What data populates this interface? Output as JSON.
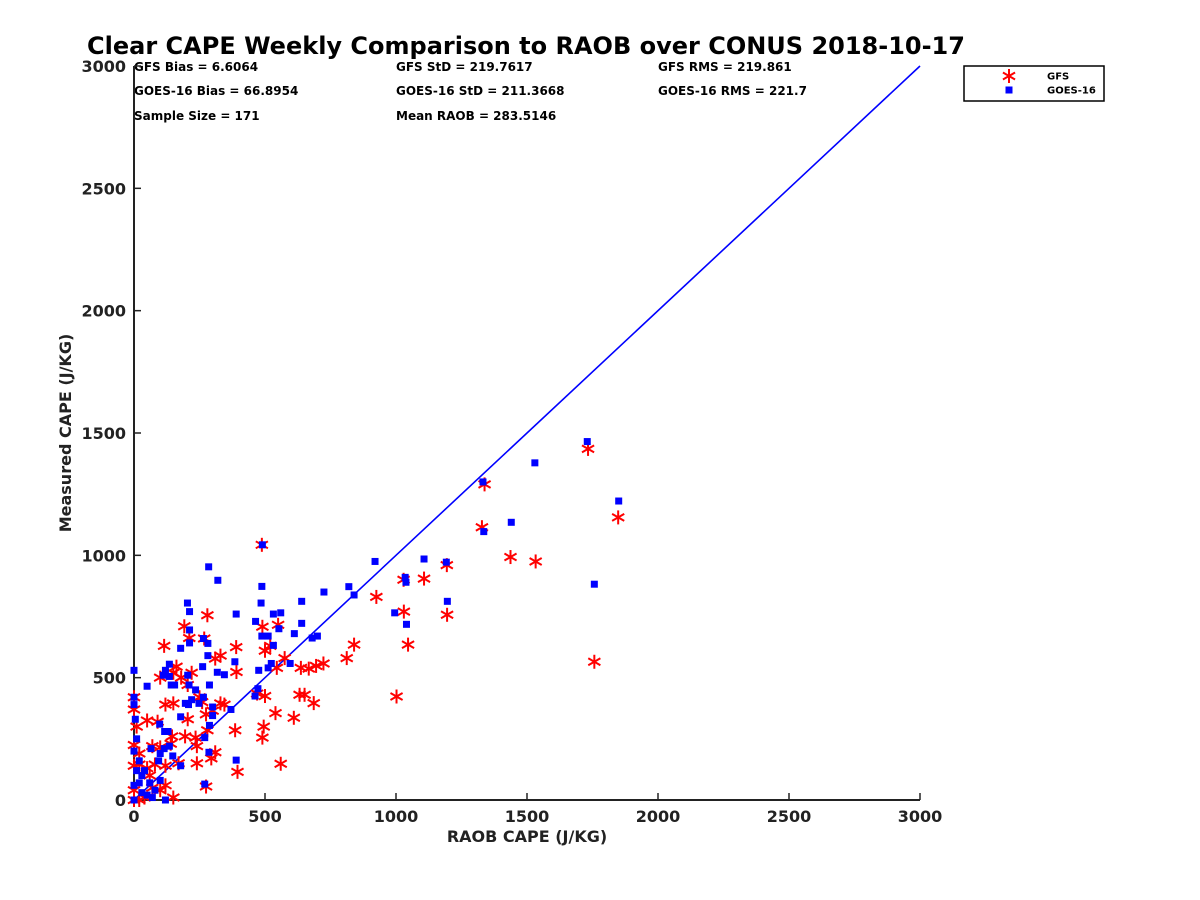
{
  "chart_data": {
    "type": "scatter",
    "title": "Clear CAPE Weekly Comparison to RAOB over CONUS 2018-10-17",
    "xlabel": "RAOB CAPE (J/KG)",
    "ylabel": "Measured CAPE (J/KG)",
    "xlim": [
      0,
      3000
    ],
    "ylim": [
      0,
      3000
    ],
    "xticks": [
      "0",
      "500",
      "1000",
      "1500",
      "2000",
      "2500",
      "3000"
    ],
    "yticks": [
      "0",
      "500",
      "1000",
      "1500",
      "2000",
      "2500",
      "3000"
    ],
    "grid": false,
    "legend_position": "top-right",
    "stats": [
      [
        "GFS Bias = 6.6064",
        "GFS StD = 219.7617",
        "GFS RMS = 219.861"
      ],
      [
        "GOES-16 Bias = 66.8954",
        "GOES-16 StD = 211.3668",
        "GOES-16 RMS = 221.7"
      ],
      [
        "Sample Size = 171",
        "Mean RAOB = 283.5146",
        ""
      ]
    ],
    "reference_line": {
      "x": [
        0,
        3000
      ],
      "y": [
        0,
        3000
      ],
      "color": "#0000ff"
    },
    "series": [
      {
        "name": "GFS",
        "marker": "asterisk",
        "color": "#ff0000",
        "points": [
          [
            488,
            1043
          ],
          [
            1733,
            1435
          ],
          [
            1848,
            1155
          ],
          [
            1338,
            1290
          ],
          [
            1328,
            1115
          ],
          [
            1437,
            993
          ],
          [
            1533,
            975
          ],
          [
            1757,
            565
          ],
          [
            1194,
            960
          ],
          [
            1107,
            905
          ],
          [
            1029,
            900
          ],
          [
            925,
            830
          ],
          [
            1030,
            770
          ],
          [
            1195,
            757
          ],
          [
            1046,
            635
          ],
          [
            1002,
            423
          ],
          [
            840,
            635
          ],
          [
            812,
            580
          ],
          [
            723,
            558
          ],
          [
            695,
            548
          ],
          [
            686,
            396
          ],
          [
            667,
            537
          ],
          [
            637,
            540
          ],
          [
            632,
            430
          ],
          [
            651,
            430
          ],
          [
            610,
            336
          ],
          [
            560,
            148
          ],
          [
            550,
            716
          ],
          [
            490,
            708
          ],
          [
            280,
            755
          ],
          [
            192,
            710
          ],
          [
            115,
            630
          ],
          [
            162,
            545
          ],
          [
            211,
            662
          ],
          [
            268,
            660
          ],
          [
            330,
            590
          ],
          [
            390,
            625
          ],
          [
            391,
            523
          ],
          [
            310,
            578
          ],
          [
            520,
            630
          ],
          [
            545,
            540
          ],
          [
            575,
            580
          ],
          [
            500,
            610
          ],
          [
            540,
            355
          ],
          [
            470,
            435
          ],
          [
            500,
            425
          ],
          [
            495,
            300
          ],
          [
            490,
            255
          ],
          [
            345,
            390
          ],
          [
            300,
            365
          ],
          [
            275,
            350
          ],
          [
            330,
            395
          ],
          [
            280,
            285
          ],
          [
            205,
            330
          ],
          [
            195,
            260
          ],
          [
            240,
            220
          ],
          [
            240,
            150
          ],
          [
            295,
            170
          ],
          [
            310,
            195
          ],
          [
            386,
            285
          ],
          [
            395,
            115
          ],
          [
            275,
            55
          ],
          [
            150,
            395
          ],
          [
            120,
            390
          ],
          [
            145,
            260
          ],
          [
            90,
            320
          ],
          [
            50,
            325
          ],
          [
            70,
            220
          ],
          [
            100,
            215
          ],
          [
            0,
            420
          ],
          [
            0,
            370
          ],
          [
            10,
            300
          ],
          [
            0,
            225
          ],
          [
            20,
            190
          ],
          [
            0,
            140
          ],
          [
            20,
            145
          ],
          [
            50,
            130
          ],
          [
            80,
            145
          ],
          [
            60,
            100
          ],
          [
            70,
            50
          ],
          [
            100,
            40
          ],
          [
            120,
            60
          ],
          [
            150,
            10
          ],
          [
            0,
            40
          ],
          [
            20,
            0
          ],
          [
            40,
            10
          ],
          [
            0,
            0
          ],
          [
            220,
            520
          ],
          [
            205,
            470
          ],
          [
            250,
            420
          ],
          [
            260,
            400
          ],
          [
            150,
            520
          ],
          [
            180,
            500
          ],
          [
            100,
            500
          ],
          [
            235,
            255
          ],
          [
            140,
            230
          ],
          [
            170,
            150
          ],
          [
            120,
            140
          ]
        ]
      },
      {
        "name": "GOES-16",
        "marker": "square",
        "color": "#0000ff",
        "points": [
          [
            490,
            1043
          ],
          [
            1730,
            1465
          ],
          [
            1850,
            1222
          ],
          [
            1332,
            1300
          ],
          [
            1335,
            1097
          ],
          [
            1440,
            1135
          ],
          [
            1530,
            1378
          ],
          [
            1757,
            882
          ],
          [
            920,
            975
          ],
          [
            1107,
            985
          ],
          [
            1192,
            972
          ],
          [
            1196,
            812
          ],
          [
            1040,
            718
          ],
          [
            1038,
            890
          ],
          [
            995,
            765
          ],
          [
            1035,
            910
          ],
          [
            840,
            838
          ],
          [
            820,
            872
          ],
          [
            725,
            850
          ],
          [
            640,
            812
          ],
          [
            640,
            722
          ],
          [
            700,
            670
          ],
          [
            680,
            662
          ],
          [
            612,
            680
          ],
          [
            596,
            558
          ],
          [
            553,
            700
          ],
          [
            560,
            765
          ],
          [
            532,
            760
          ],
          [
            532,
            632
          ],
          [
            524,
            558
          ],
          [
            512,
            540
          ],
          [
            512,
            670
          ],
          [
            488,
            670
          ],
          [
            485,
            805
          ],
          [
            488,
            873
          ],
          [
            476,
            530
          ],
          [
            473,
            455
          ],
          [
            462,
            425
          ],
          [
            464,
            730
          ],
          [
            390,
            760
          ],
          [
            385,
            565
          ],
          [
            370,
            370
          ],
          [
            390,
            163
          ],
          [
            320,
            898
          ],
          [
            285,
            953
          ],
          [
            204,
            805
          ],
          [
            212,
            770
          ],
          [
            212,
            695
          ],
          [
            212,
            642
          ],
          [
            178,
            620
          ],
          [
            265,
            660
          ],
          [
            282,
            640
          ],
          [
            282,
            590
          ],
          [
            318,
            522
          ],
          [
            345,
            512
          ],
          [
            288,
            470
          ],
          [
            262,
            545
          ],
          [
            265,
            420
          ],
          [
            300,
            380
          ],
          [
            300,
            345
          ],
          [
            288,
            305
          ],
          [
            270,
            255
          ],
          [
            286,
            195
          ],
          [
            248,
            395
          ],
          [
            235,
            450
          ],
          [
            210,
            470
          ],
          [
            205,
            510
          ],
          [
            155,
            470
          ],
          [
            142,
            470
          ],
          [
            135,
            555
          ],
          [
            135,
            505
          ],
          [
            120,
            530
          ],
          [
            112,
            510
          ],
          [
            98,
            310
          ],
          [
            117,
            280
          ],
          [
            130,
            280
          ],
          [
            135,
            220
          ],
          [
            115,
            210
          ],
          [
            100,
            190
          ],
          [
            94,
            160
          ],
          [
            148,
            180
          ],
          [
            178,
            340
          ],
          [
            178,
            140
          ],
          [
            208,
            390
          ],
          [
            196,
            395
          ],
          [
            220,
            410
          ],
          [
            50,
            465
          ],
          [
            0,
            530
          ],
          [
            0,
            420
          ],
          [
            0,
            390
          ],
          [
            5,
            330
          ],
          [
            10,
            250
          ],
          [
            0,
            200
          ],
          [
            20,
            160
          ],
          [
            40,
            120
          ],
          [
            20,
            70
          ],
          [
            0,
            60
          ],
          [
            30,
            30
          ],
          [
            50,
            20
          ],
          [
            70,
            10
          ],
          [
            0,
            0
          ],
          [
            60,
            70
          ],
          [
            80,
            40
          ],
          [
            100,
            80
          ],
          [
            120,
            0
          ],
          [
            270,
            65
          ],
          [
            65,
            210
          ],
          [
            30,
            100
          ],
          [
            10,
            120
          ]
        ]
      }
    ]
  }
}
